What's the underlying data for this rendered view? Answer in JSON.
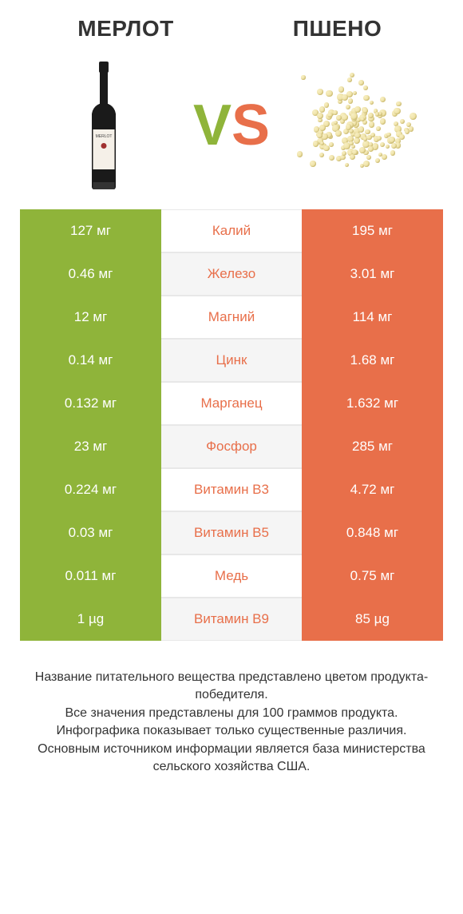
{
  "header": {
    "left_title": "МЕРЛОТ",
    "right_title": "ПШЕНО",
    "vs_text": "VS"
  },
  "colors": {
    "left_cell_bg": "#8fb43a",
    "right_cell_bg": "#e86f4a",
    "row_even_bg": "#ffffff",
    "row_odd_bg": "#f5f5f5",
    "mid_text": "#e86f4a",
    "value_text": "#ffffff",
    "title_text": "#333333",
    "vs_left": "#8fb43a",
    "vs_right": "#e86f4a",
    "border": "#e8e8e8"
  },
  "table": {
    "rows": [
      {
        "left": "127 мг",
        "mid": "Калий",
        "right": "195 мг"
      },
      {
        "left": "0.46 мг",
        "mid": "Железо",
        "right": "3.01 мг"
      },
      {
        "left": "12 мг",
        "mid": "Магний",
        "right": "114 мг"
      },
      {
        "left": "0.14 мг",
        "mid": "Цинк",
        "right": "1.68 мг"
      },
      {
        "left": "0.132 мг",
        "mid": "Марганец",
        "right": "1.632 мг"
      },
      {
        "left": "23 мг",
        "mid": "Фосфор",
        "right": "285 мг"
      },
      {
        "left": "0.224 мг",
        "mid": "Витамин B3",
        "right": "4.72 мг"
      },
      {
        "left": "0.03 мг",
        "mid": "Витамин B5",
        "right": "0.848 мг"
      },
      {
        "left": "0.011 мг",
        "mid": "Медь",
        "right": "0.75 мг"
      },
      {
        "left": "1 µg",
        "mid": "Витамин B9",
        "right": "85 µg"
      }
    ]
  },
  "footer": {
    "lines": [
      "Название питательного вещества представлено цветом продукта-победителя.",
      "Все значения представлены для 100 граммов продукта.",
      "Инфографика показывает только существенные различия.",
      "Основным источником информации является база министерства сельского хозяйства США."
    ]
  },
  "millet": {
    "grain_count": 140,
    "grain_min_size": 5,
    "grain_max_size": 9
  }
}
